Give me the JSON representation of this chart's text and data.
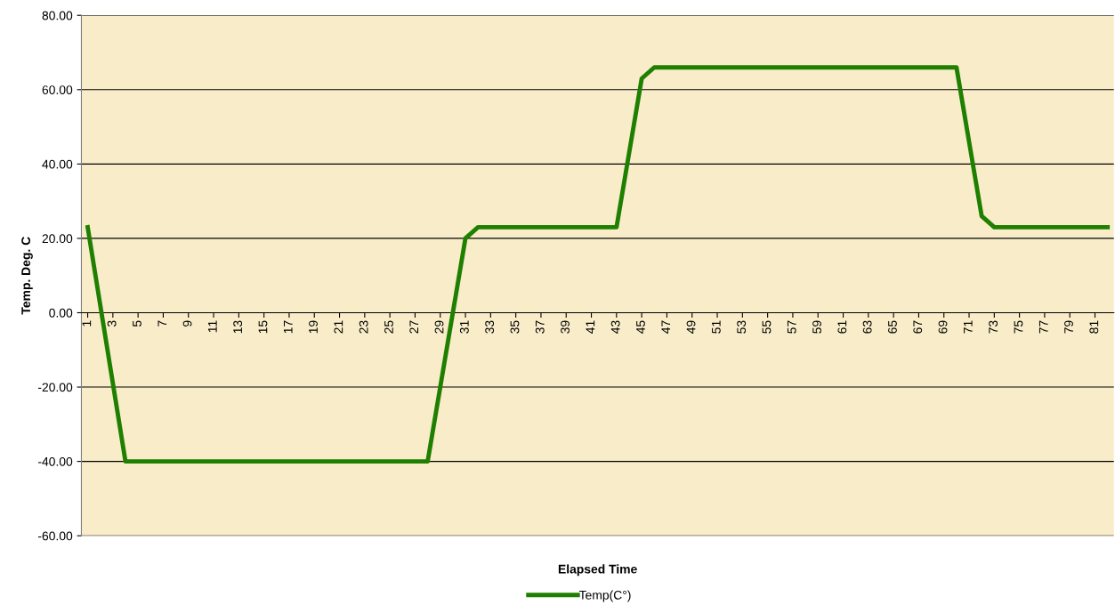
{
  "chart_data": {
    "type": "line",
    "xlabel": "Elapsed Time",
    "ylabel": "Temp. Deg. C",
    "categories": [
      "1",
      null,
      "3",
      null,
      "5",
      null,
      "7",
      null,
      "9",
      null,
      "11",
      null,
      "13",
      null,
      "15",
      null,
      "17",
      null,
      "19",
      null,
      "21",
      null,
      "23",
      null,
      "25",
      null,
      "27",
      null,
      "29",
      null,
      "31",
      null,
      "33",
      null,
      "35",
      null,
      "37",
      null,
      "39",
      null,
      "41",
      null,
      "43",
      null,
      "45",
      null,
      "47",
      null,
      "49",
      null,
      "51",
      null,
      "53",
      null,
      "55",
      null,
      "57",
      null,
      "59",
      null,
      "61",
      null,
      "63",
      null,
      "65",
      null,
      "67",
      null,
      "69",
      null,
      "71",
      null,
      "73",
      null,
      "75",
      null,
      "77",
      null,
      "79",
      null,
      "81",
      null
    ],
    "series": [
      {
        "name": "Temp(C°)",
        "color": "#1f7f00",
        "values": [
          23,
          2,
          -19,
          -40,
          -40,
          -40,
          -40,
          -40,
          -40,
          -40,
          -40,
          -40,
          -40,
          -40,
          -40,
          -40,
          -40,
          -40,
          -40,
          -40,
          -40,
          -40,
          -40,
          -40,
          -40,
          -40,
          -40,
          -40,
          -20,
          0,
          20,
          23,
          23,
          23,
          23,
          23,
          23,
          23,
          23,
          23,
          23,
          23,
          23,
          43,
          63,
          66,
          66,
          66,
          66,
          66,
          66,
          66,
          66,
          66,
          66,
          66,
          66,
          66,
          66,
          66,
          66,
          66,
          66,
          66,
          66,
          66,
          66,
          66,
          66,
          66,
          46,
          26,
          23,
          23,
          23,
          23,
          23,
          23,
          23,
          23,
          23,
          23
        ]
      }
    ],
    "ylim": [
      -60,
      80
    ],
    "yticks": [
      {
        "value": -60,
        "label": "-60.00"
      },
      {
        "value": -40,
        "label": "-40.00"
      },
      {
        "value": -20,
        "label": "-20.00"
      },
      {
        "value": 0,
        "label": "0.00"
      },
      {
        "value": 20,
        "label": "20.00"
      },
      {
        "value": 40,
        "label": "40.00"
      },
      {
        "value": 60,
        "label": "60.00"
      },
      {
        "value": 80,
        "label": "80.00"
      }
    ],
    "grid": "y",
    "legend": "bottom",
    "marker": "none",
    "line_style": "solid"
  }
}
